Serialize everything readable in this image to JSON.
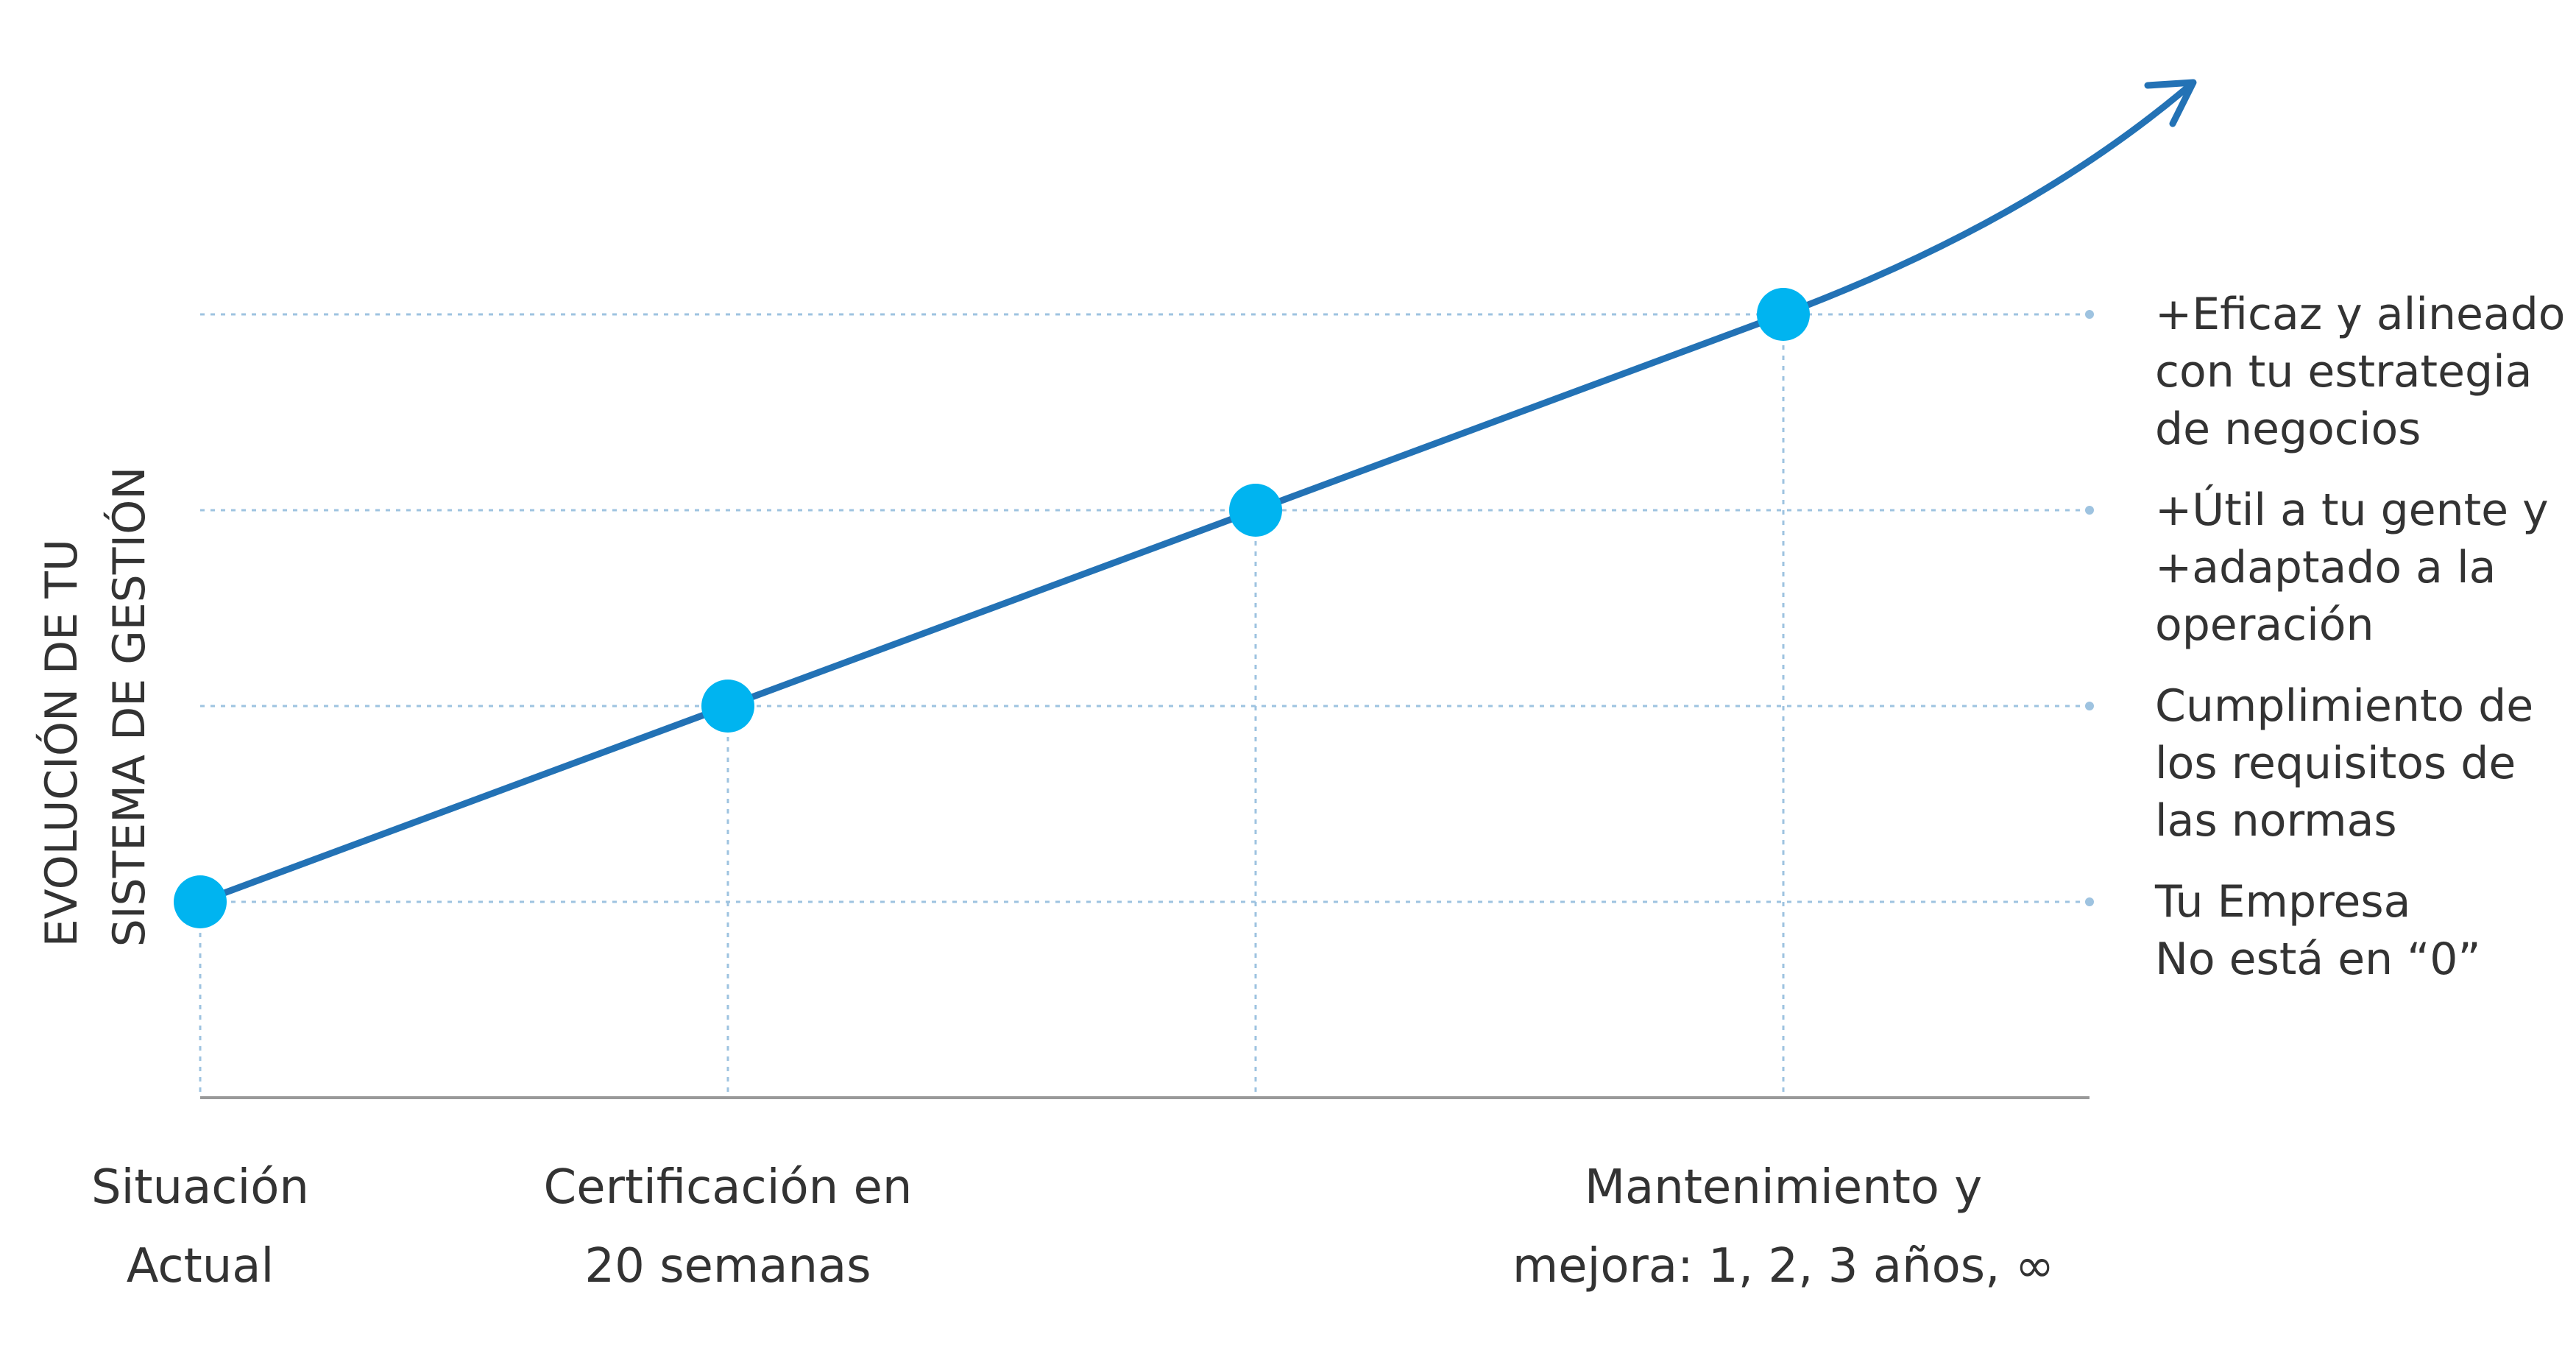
{
  "chart_data": {
    "type": "line",
    "y_label": "EVOLUCIÓN DE TU\nSISTEMA DE GESTIÓN",
    "categories": [
      "Situación\nActual",
      "Certificación en\n20 semanas",
      null,
      "Mantenimiento y\nmejora: 1, 2, 3 años, ∞"
    ],
    "values": [
      1,
      2,
      3,
      4
    ],
    "color": "#2372b5",
    "marker_color": "#00b4f0",
    "ylim": [
      0,
      5.5
    ],
    "yticks": [
      {
        "value": 1,
        "label": "Tu Empresa\nNo está en “0”"
      },
      {
        "value": 2,
        "label": "Cumplimiento de\nlos requisitos de\nlas normas"
      },
      {
        "value": 3,
        "label": "+Útil a tu gente y\n+adaptado a la\noperación"
      },
      {
        "value": 4,
        "label": "+Eficaz y alineado\ncon tu estrategia\nde negocios"
      }
    ],
    "grid": true
  }
}
